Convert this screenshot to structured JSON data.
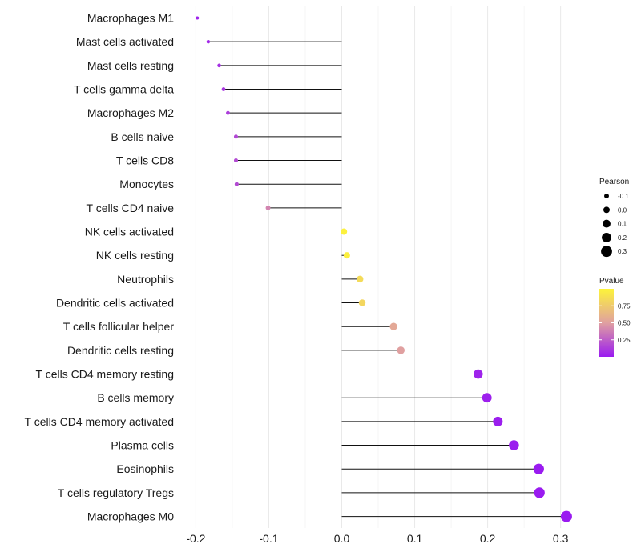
{
  "chart_data": {
    "type": "lollipop",
    "title": "",
    "xlabel": "",
    "ylabel": "",
    "xlim": [
      -0.22,
      0.33
    ],
    "x_ticks": [
      -0.2,
      -0.1,
      0.0,
      0.1,
      0.2,
      0.3
    ],
    "x_tick_labels": [
      "-0.2",
      "-0.1",
      "0.0",
      "0.1",
      "0.2",
      "0.3"
    ],
    "categories": [
      "Macrophages M1",
      "Mast cells activated",
      "Mast cells resting",
      "T cells gamma delta",
      "Macrophages M2",
      "B cells naive",
      "T cells CD8",
      "Monocytes",
      "T cells CD4 naive",
      "NK cells activated",
      "NK cells resting",
      "Neutrophils",
      "Dendritic cells activated",
      "T cells follicular helper",
      "Dendritic cells resting",
      "T cells CD4 memory resting",
      "B cells memory",
      "T cells CD4 memory activated",
      "Plasma cells",
      "Eosinophils",
      "T cells regulatory  Tregs ",
      "Macrophages M0"
    ],
    "pearson": [
      -0.198,
      -0.183,
      -0.168,
      -0.162,
      -0.156,
      -0.145,
      -0.145,
      -0.144,
      -0.101,
      0.003,
      0.007,
      0.025,
      0.028,
      0.071,
      0.081,
      0.187,
      0.199,
      0.214,
      0.236,
      0.27,
      0.271,
      0.308
    ],
    "pvalue": [
      0.03,
      0.05,
      0.08,
      0.1,
      0.13,
      0.17,
      0.18,
      0.18,
      0.4,
      0.98,
      0.97,
      0.85,
      0.82,
      0.55,
      0.5,
      0.03,
      0.02,
      0.01,
      0.01,
      0.0,
      0.0,
      0.0
    ],
    "grid": true,
    "legend_position": "right",
    "size_legend": {
      "title": "Pearson",
      "values": [
        -0.1,
        0.0,
        0.1,
        0.2,
        0.3
      ],
      "labels": [
        "-0.1",
        "0.0",
        "0.1",
        "0.2",
        "0.3"
      ]
    },
    "color_legend": {
      "title": "Pvalue",
      "range": [
        0.0,
        1.0
      ],
      "ticks": [
        0.25,
        0.5,
        0.75
      ],
      "labels": [
        "0.25",
        "0.50",
        "0.75"
      ],
      "low_color": "#9a1bf0",
      "mid_color": "#e0a0a0",
      "high_color": "#fdf43a"
    }
  }
}
